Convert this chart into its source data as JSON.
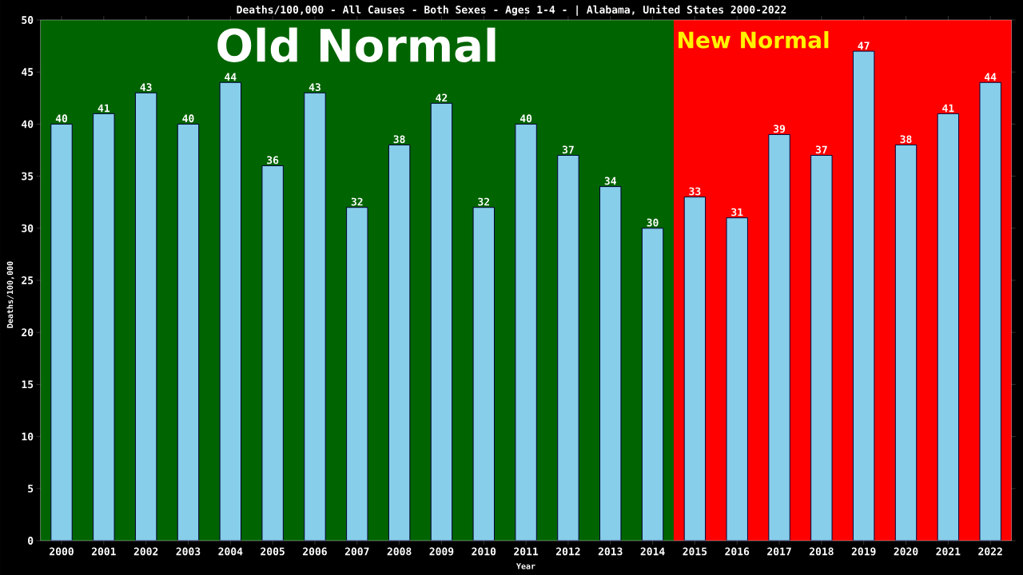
{
  "chart_data": {
    "type": "bar",
    "title": "Deaths/100,000 - All Causes - Both Sexes - Ages 1-4 -  | Alabama, United States 2000-2022",
    "xlabel": "Year",
    "ylabel": "Deaths/100,000",
    "categories": [
      "2000",
      "2001",
      "2002",
      "2003",
      "2004",
      "2005",
      "2006",
      "2007",
      "2008",
      "2009",
      "2010",
      "2011",
      "2012",
      "2013",
      "2014",
      "2015",
      "2016",
      "2017",
      "2018",
      "2019",
      "2020",
      "2021",
      "2022"
    ],
    "values": [
      40,
      41,
      43,
      40,
      44,
      36,
      43,
      32,
      38,
      42,
      32,
      40,
      37,
      34,
      30,
      33,
      31,
      39,
      37,
      47,
      38,
      41,
      44
    ],
    "color": "#87ceeb",
    "ylim": [
      0,
      50
    ],
    "yticks": [
      0,
      5,
      10,
      15,
      20,
      25,
      30,
      35,
      40,
      45,
      50
    ],
    "data_labels": true,
    "grid": false,
    "bands": [
      {
        "axis": "x",
        "from": "2000",
        "to": "2014",
        "label": "Old Normal",
        "color": "#006400"
      },
      {
        "axis": "x",
        "from": "2015",
        "to": "2022",
        "label": "New Normal",
        "color": "#ff0000"
      }
    ]
  }
}
